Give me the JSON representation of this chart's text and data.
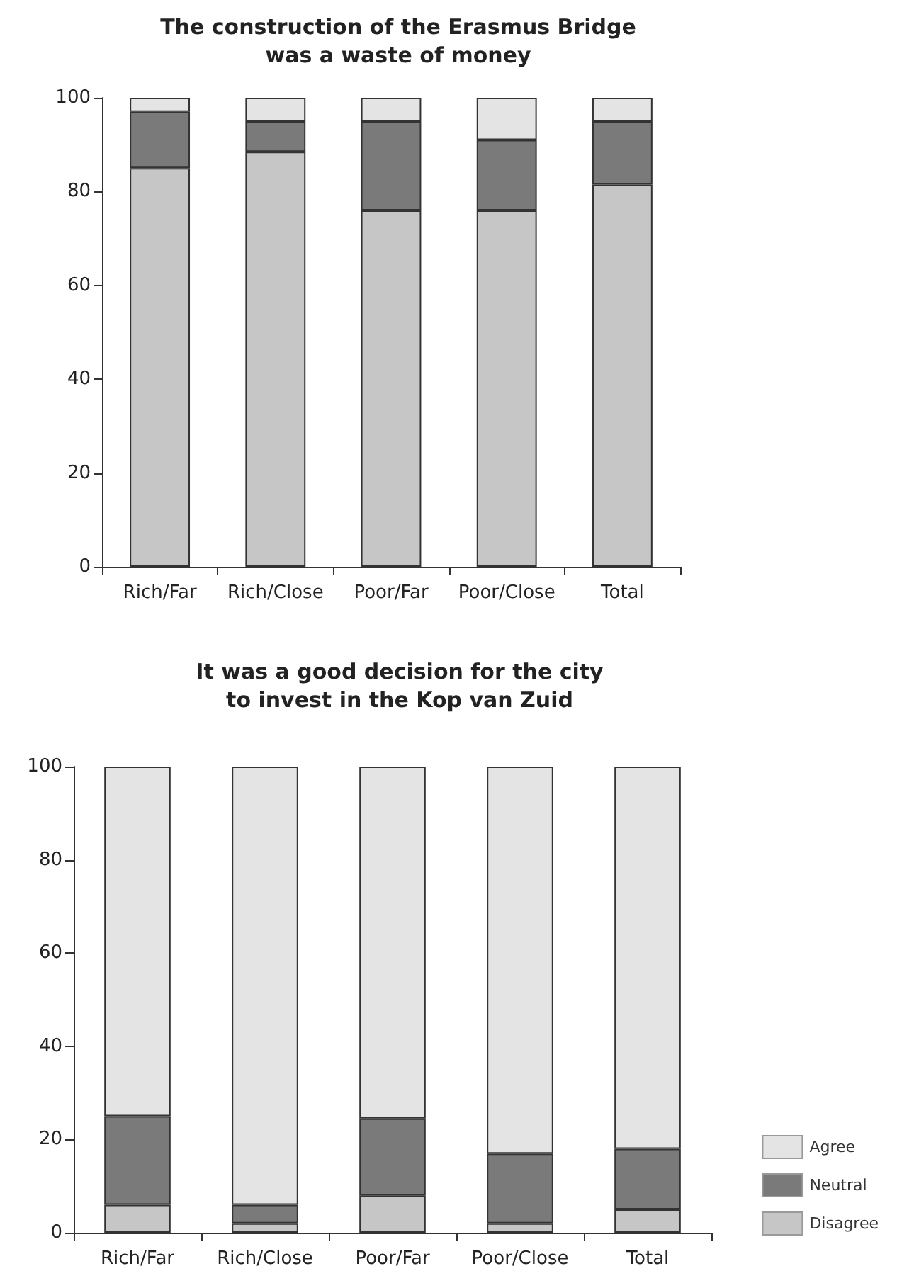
{
  "chart_data": [
    {
      "type": "bar",
      "title": "The construction of the Erasmus Bridge\nwas a waste of money",
      "categories": [
        "Rich/Far",
        "Rich/Close",
        "Poor/Far",
        "Poor/Close",
        "Total"
      ],
      "stacked": true,
      "legend": false,
      "grid": false,
      "ylim": [
        0,
        100
      ],
      "yticks": [
        0,
        20,
        40,
        60,
        80,
        100
      ],
      "series": [
        {
          "color": "#c6c6c6",
          "values": [
            85,
            88.5,
            76,
            76,
            81.5
          ]
        },
        {
          "color": "#7a7a7a",
          "values": [
            12,
            6.5,
            19,
            15,
            13.5
          ]
        },
        {
          "color": "#e4e4e4",
          "values": [
            3,
            5,
            5,
            9,
            5
          ]
        }
      ]
    },
    {
      "type": "bar",
      "title": "It was a good decision for the city\nto invest in the Kop van Zuid",
      "categories": [
        "Rich/Far",
        "Rich/Close",
        "Poor/Far",
        "Poor/Close",
        "Total"
      ],
      "stacked": true,
      "legend": "bottom right",
      "grid": false,
      "ylim": [
        0,
        100
      ],
      "yticks": [
        0,
        20,
        40,
        60,
        80,
        100
      ],
      "series": [
        {
          "name": "Disagree",
          "color": "#c6c6c6",
          "values": [
            6,
            2,
            8,
            2,
            5
          ]
        },
        {
          "name": "Neutral",
          "color": "#7a7a7a",
          "values": [
            19,
            4,
            16.5,
            15,
            13
          ]
        },
        {
          "name": "Agree",
          "color": "#e4e4e4",
          "values": [
            75,
            94,
            75.5,
            83,
            82
          ]
        }
      ]
    }
  ]
}
